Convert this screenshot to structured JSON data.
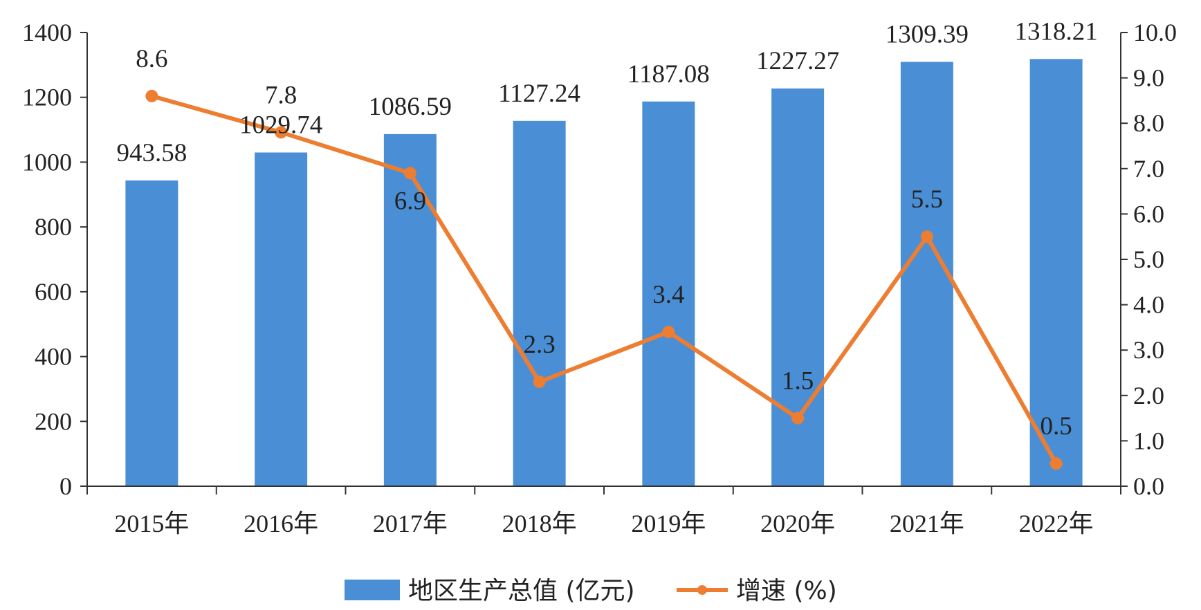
{
  "chart_data": {
    "type": "bar",
    "categories": [
      "2015年",
      "2016年",
      "2017年",
      "2018年",
      "2019年",
      "2020年",
      "2021年",
      "2022年"
    ],
    "series": [
      {
        "name": "地区生产总值 (亿元)",
        "type": "bar",
        "axis": "left",
        "color": "#4A8FD6",
        "values": [
          943.58,
          1029.74,
          1086.59,
          1127.24,
          1187.08,
          1227.27,
          1309.39,
          1318.21
        ],
        "labels": [
          "943.58",
          "1029.74",
          "1086.59",
          "1127.24",
          "1187.08",
          "1227.27",
          "1309.39",
          "1318.21"
        ]
      },
      {
        "name": "增速 (%)",
        "type": "line",
        "axis": "right",
        "color": "#ED7D31",
        "values": [
          8.6,
          7.8,
          6.9,
          2.3,
          3.4,
          1.5,
          5.5,
          0.5
        ],
        "labels": [
          "8.6",
          "7.8",
          "6.9",
          "2.3",
          "3.4",
          "1.5",
          "5.5",
          "0.5"
        ]
      }
    ],
    "y_left": {
      "ylim": [
        0,
        1400
      ],
      "ticks": [
        "0",
        "200",
        "400",
        "600",
        "800",
        "1000",
        "1200",
        "1400"
      ]
    },
    "y_right": {
      "ylim": [
        0,
        10
      ],
      "ticks": [
        "0.0",
        "1.0",
        "2.0",
        "3.0",
        "4.0",
        "5.0",
        "6.0",
        "7.0",
        "8.0",
        "9.0",
        "10.0"
      ]
    },
    "grid": false,
    "legend_position": "bottom"
  }
}
